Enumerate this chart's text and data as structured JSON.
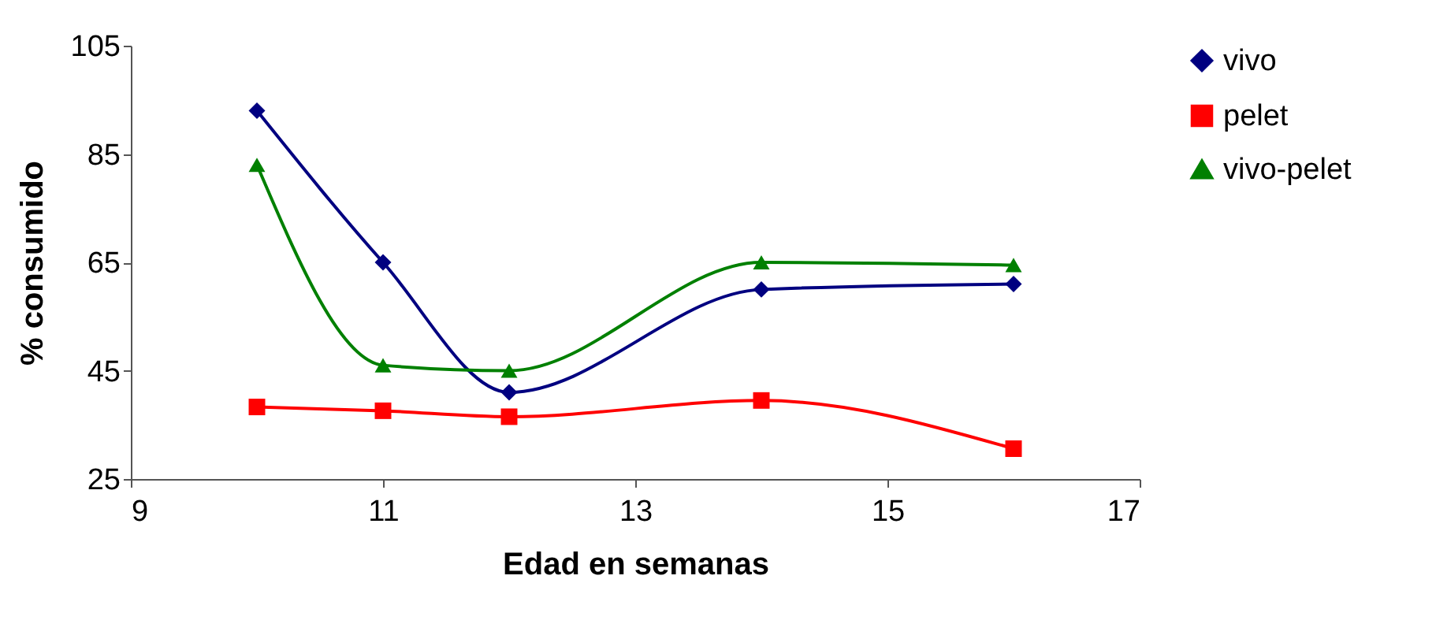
{
  "chart_data": {
    "type": "line",
    "xlabel": "Edad en semanas",
    "ylabel": "% consumido",
    "x": [
      10,
      11,
      12,
      14,
      16
    ],
    "series": [
      {
        "name": "vivo",
        "color": "#000080",
        "marker": "diamond",
        "values": [
          93,
          65,
          41,
          60,
          61
        ]
      },
      {
        "name": "pelet",
        "color": "#ff0000",
        "marker": "square",
        "values": [
          38.3,
          37.6,
          36.5,
          39.5,
          30.6
        ]
      },
      {
        "name": "vivo-pelet",
        "color": "#008000",
        "marker": "triangle",
        "values": [
          83,
          46,
          45,
          65,
          64.5
        ]
      }
    ],
    "xlim": [
      9,
      17
    ],
    "xticks": [
      9,
      11,
      13,
      15,
      17
    ],
    "ylim": [
      25,
      105
    ],
    "yticks": [
      25,
      45,
      65,
      85,
      105
    ],
    "grid": false,
    "legend": "right"
  }
}
